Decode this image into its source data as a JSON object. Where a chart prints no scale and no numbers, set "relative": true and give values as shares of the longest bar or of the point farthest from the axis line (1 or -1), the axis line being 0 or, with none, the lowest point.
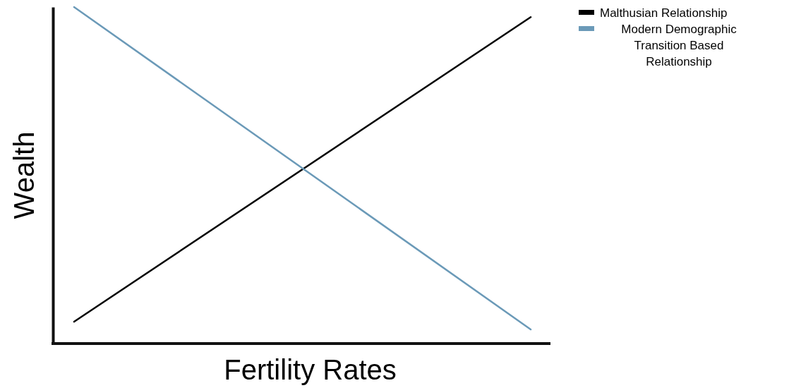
{
  "chart_data": {
    "type": "line",
    "relative": true,
    "xlabel": "Fertility Rates",
    "ylabel": "Wealth",
    "categories": [
      null,
      null
    ],
    "legend": "top right",
    "marker": "none",
    "ref_lines": [
      {
        "axis": "y",
        "value": 0,
        "color": "#111111"
      }
    ],
    "series": [
      {
        "name": "Malthusian Relationship",
        "color": "#000000",
        "values": [
          0.065,
          0.97
        ]
      },
      {
        "name": "Modern Demographic Transition Based Relationship",
        "color": "#6b9ab8",
        "values": [
          1,
          0.042
        ]
      }
    ]
  }
}
